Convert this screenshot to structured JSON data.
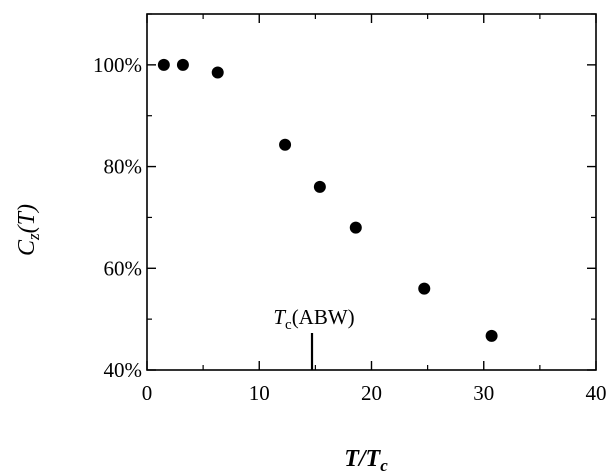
{
  "chart_data": {
    "type": "scatter",
    "title": "",
    "xlabel": {
      "main": "T/T",
      "sub": "c"
    },
    "ylabel": {
      "main": "C",
      "sub": "z",
      "tail": "(T)"
    },
    "xlim": [
      0,
      40
    ],
    "ylim": [
      40,
      110
    ],
    "x_ticks": [
      0,
      10,
      20,
      30,
      40
    ],
    "x_tick_labels": [
      "0",
      "10",
      "20",
      "30",
      "40"
    ],
    "y_ticks": [
      40,
      60,
      80,
      100
    ],
    "y_tick_labels": [
      "40%",
      "60%",
      "80%",
      "100%"
    ],
    "grid": false,
    "legend": "none",
    "series": [
      {
        "marker": "filled-circle",
        "color": "#000000",
        "points": [
          {
            "x": 1.5,
            "y": 100
          },
          {
            "x": 3.2,
            "y": 100
          },
          {
            "x": 6.3,
            "y": 98.5
          },
          {
            "x": 12.3,
            "y": 84.3
          },
          {
            "x": 15.4,
            "y": 76
          },
          {
            "x": 18.6,
            "y": 68
          },
          {
            "x": 24.7,
            "y": 56
          },
          {
            "x": 30.7,
            "y": 46.7
          }
        ]
      }
    ],
    "annotations": [
      {
        "text_main": "T",
        "text_sub": "c",
        "text_tail": "(ABW)",
        "x": 14.7,
        "marker": "vertical-line"
      }
    ]
  }
}
